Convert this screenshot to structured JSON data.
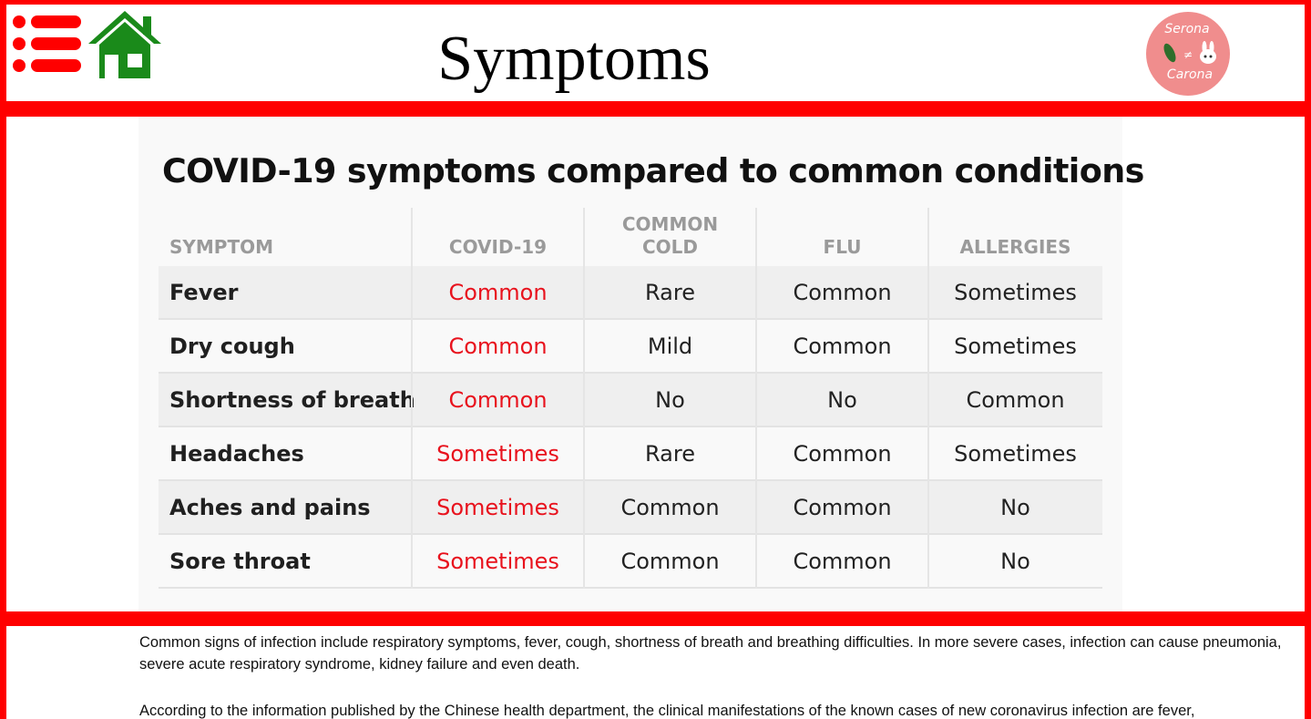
{
  "header": {
    "title": "Symptoms",
    "menu_icon": "hamburger-menu-icon",
    "home_icon": "home-icon",
    "logo": {
      "line1": "Serona",
      "line2": "Carona",
      "mid": "≠"
    },
    "colors": {
      "menu": "#ff0000",
      "home": "#1a8a1a",
      "logo": "#f08d8d",
      "frame": "#ff0000"
    }
  },
  "table": {
    "title": "COVID-19 symptoms compared to common conditions",
    "headers": {
      "symptom": "SYMPTOM",
      "covid": "COVID-19",
      "cold_line1": "COMMON",
      "cold_line2": "COLD",
      "flu": "FLU",
      "allergies": "ALLERGIES"
    },
    "rows": [
      {
        "symptom": "Fever",
        "covid": "Common",
        "cold": "Rare",
        "flu": "Common",
        "allergies": "Sometimes"
      },
      {
        "symptom": "Dry cough",
        "covid": "Common",
        "cold": "Mild",
        "flu": "Common",
        "allergies": "Sometimes"
      },
      {
        "symptom": "Shortness of breath",
        "covid": "Common",
        "cold": "No",
        "flu": "No",
        "allergies": "Common"
      },
      {
        "symptom": "Headaches",
        "covid": "Sometimes",
        "cold": "Rare",
        "flu": "Common",
        "allergies": "Sometimes"
      },
      {
        "symptom": "Aches and pains",
        "covid": "Sometimes",
        "cold": "Common",
        "flu": "Common",
        "allergies": "No"
      },
      {
        "symptom": "Sore throat",
        "covid": "Sometimes",
        "cold": "Common",
        "flu": "Common",
        "allergies": "No"
      }
    ],
    "colors": {
      "covid_text": "#e8121d",
      "header_text": "#9a9a9a"
    }
  },
  "body": {
    "paragraph1": "Common signs of infection include respiratory symptoms, fever, cough, shortness of breath and breathing difficulties. In more severe cases, infection can cause pneumonia, severe acute respiratory syndrome, kidney failure and even death.",
    "paragraph2": "According to the information published by the Chinese health department, the clinical manifestations of the known cases of new coronavirus infection are fever,"
  }
}
